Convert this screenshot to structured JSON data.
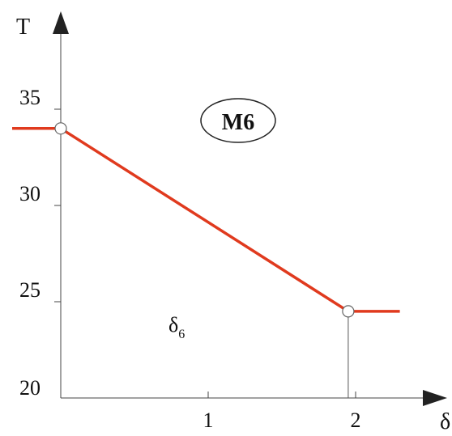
{
  "chart_data": {
    "type": "line",
    "title": "",
    "badge": "M6",
    "ylabel": "T",
    "xlabel": "δ",
    "annotation": {
      "symbol": "δ",
      "subscript": "6"
    },
    "ylim": [
      20,
      39
    ],
    "xlim": [
      -0.33,
      2.6
    ],
    "yticks": [
      {
        "value": 20,
        "label": "20"
      },
      {
        "value": 25,
        "label": "25"
      },
      {
        "value": 30,
        "label": "30"
      },
      {
        "value": 35,
        "label": "35"
      }
    ],
    "xticks": [
      {
        "value": 1,
        "label": "1"
      },
      {
        "value": 2,
        "label": "2"
      }
    ],
    "series": [
      {
        "color": "#e03a1e",
        "points": [
          [
            -0.33,
            34
          ],
          [
            0,
            34
          ],
          [
            1.95,
            24.5
          ],
          [
            2.3,
            24.5
          ]
        ]
      }
    ],
    "breakpoints": [
      [
        0,
        34
      ],
      [
        1.95,
        24.5
      ]
    ],
    "grid": false,
    "colors": {
      "line": "#e03a1e",
      "axis": "#222222",
      "marker_fill": "#ffffff"
    }
  }
}
